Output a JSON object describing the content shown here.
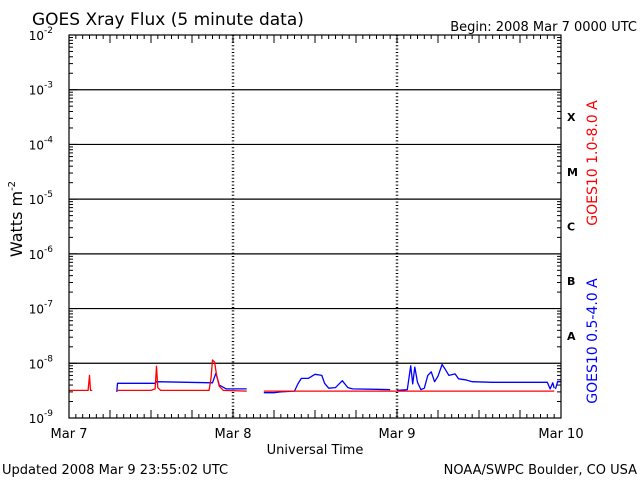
{
  "header": {
    "title": "GOES Xray Flux (5 minute data)",
    "begin": "Begin:  2008 Mar 7 0000 UTC"
  },
  "footer": {
    "updated": "Updated 2008 Mar  9 23:55:02 UTC",
    "credit": "NOAA/SWPC Boulder, CO USA"
  },
  "colors": {
    "long_channel": "#ff0000",
    "short_channel": "#0000ff",
    "axes": "#000000",
    "background": "#ffffff"
  },
  "chart_data": {
    "type": "line",
    "title": "GOES Xray Flux (5 minute data)",
    "xlabel": "Universal Time",
    "ylabel": "Watts m",
    "ylabel_superscript": "-2",
    "y_scale": "log",
    "ylim": [
      1e-09,
      0.01
    ],
    "xlim": [
      0,
      72
    ],
    "x_unit": "hours since 2008 Mar 7 0000 UTC",
    "x_ticks": [
      {
        "x": 0,
        "label": "Mar 7"
      },
      {
        "x": 24,
        "label": "Mar 8"
      },
      {
        "x": 48,
        "label": "Mar 9"
      },
      {
        "x": 72,
        "label": "Mar 10"
      }
    ],
    "y_ticks": [
      {
        "exp": -9,
        "label": "10",
        "sup": "-9"
      },
      {
        "exp": -8,
        "label": "10",
        "sup": "-8"
      },
      {
        "exp": -7,
        "label": "10",
        "sup": "-7"
      },
      {
        "exp": -6,
        "label": "10",
        "sup": "-6"
      },
      {
        "exp": -5,
        "label": "10",
        "sup": "-5"
      },
      {
        "exp": -4,
        "label": "10",
        "sup": "-4"
      },
      {
        "exp": -3,
        "label": "10",
        "sup": "-3"
      },
      {
        "exp": -2,
        "label": "10",
        "sup": "-2"
      }
    ],
    "flare_classes": [
      {
        "label": "A",
        "exp": -7.5
      },
      {
        "label": "B",
        "exp": -6.5
      },
      {
        "label": "C",
        "exp": -5.5
      },
      {
        "label": "M",
        "exp": -4.5
      },
      {
        "label": "X",
        "exp": -3.5
      }
    ],
    "grid": "horizontal lines at each decade from 1e-8 to 1e-3; dashed vertical lines at day boundaries",
    "series": [
      {
        "name": "GOES10 1.0-8.0 A",
        "color": "#ff0000",
        "segments": [
          [
            [
              0,
              3.2e-09
            ],
            [
              2.8,
              3.2e-09
            ],
            [
              3.0,
              6e-09
            ],
            [
              3.15,
              3.2e-09
            ],
            [
              3.4,
              3.2e-09
            ]
          ],
          [
            [
              7.0,
              3.2e-09
            ],
            [
              12.0,
              3.2e-09
            ],
            [
              12.6,
              3.4e-09
            ],
            [
              12.8,
              8.8e-09
            ],
            [
              13.0,
              3.6e-09
            ],
            [
              13.4,
              3.2e-09
            ],
            [
              20.5,
              3.2e-09
            ],
            [
              20.8,
              5.5e-09
            ],
            [
              21.0,
              1.15e-08
            ],
            [
              21.3,
              1.05e-08
            ],
            [
              21.6,
              6e-09
            ],
            [
              22.0,
              3.8e-09
            ],
            [
              22.6,
              3.2e-09
            ],
            [
              26.0,
              3.1e-09
            ]
          ],
          [
            [
              28.5,
              3.1e-09
            ],
            [
              71.0,
              3.1e-09
            ]
          ]
        ]
      },
      {
        "name": "GOES10 0.5-4.0 A",
        "color": "#0000ff",
        "segments": [
          [
            [
              7.0,
              3e-09
            ],
            [
              7.1,
              4.3e-09
            ],
            [
              12.6,
              4.3e-09
            ],
            [
              12.8,
              4.6e-09
            ],
            [
              21.0,
              4.4e-09
            ],
            [
              21.5,
              6.6e-09
            ],
            [
              22.0,
              4e-09
            ],
            [
              23.0,
              3.4e-09
            ],
            [
              26.0,
              3.4e-09
            ]
          ],
          [
            [
              28.5,
              2.9e-09
            ],
            [
              30.0,
              2.9e-09
            ],
            [
              31.0,
              3e-09
            ],
            [
              33.0,
              3.1e-09
            ],
            [
              33.5,
              4.2e-09
            ],
            [
              34.0,
              5.3e-09
            ],
            [
              35.0,
              5.3e-09
            ],
            [
              36.0,
              6.3e-09
            ],
            [
              37.0,
              6e-09
            ],
            [
              37.4,
              4.3e-09
            ],
            [
              38.0,
              3.5e-09
            ],
            [
              39.0,
              3.6e-09
            ],
            [
              40.0,
              4.8e-09
            ],
            [
              40.8,
              3.6e-09
            ],
            [
              41.5,
              3.4e-09
            ],
            [
              47.0,
              3.3e-09
            ]
          ],
          [
            [
              48.0,
              3.2e-09
            ],
            [
              49.5,
              3.3e-09
            ],
            [
              50.0,
              9e-09
            ],
            [
              50.3,
              4.2e-09
            ],
            [
              50.6,
              8.5e-09
            ],
            [
              51.0,
              4.5e-09
            ],
            [
              51.5,
              3.3e-09
            ],
            [
              52.0,
              3.5e-09
            ],
            [
              52.5,
              6e-09
            ],
            [
              53.0,
              7e-09
            ],
            [
              53.5,
              4.6e-09
            ],
            [
              54.0,
              5.8e-09
            ],
            [
              54.6,
              9.5e-09
            ],
            [
              55.0,
              8e-09
            ],
            [
              55.6,
              6e-09
            ],
            [
              56.5,
              6.4e-09
            ],
            [
              57.0,
              5.2e-09
            ],
            [
              58.0,
              5e-09
            ],
            [
              59.0,
              4.6e-09
            ],
            [
              62.0,
              4.5e-09
            ],
            [
              65.0,
              4.5e-09
            ],
            [
              70.0,
              4.5e-09
            ],
            [
              70.4,
              3.4e-09
            ],
            [
              70.8,
              4.4e-09
            ],
            [
              71.0,
              3.5e-09
            ]
          ],
          [
            [
              71.2,
              3.4e-09
            ],
            [
              71.5,
              4.6e-09
            ],
            [
              72.0,
              4.6e-09
            ]
          ]
        ]
      }
    ]
  }
}
